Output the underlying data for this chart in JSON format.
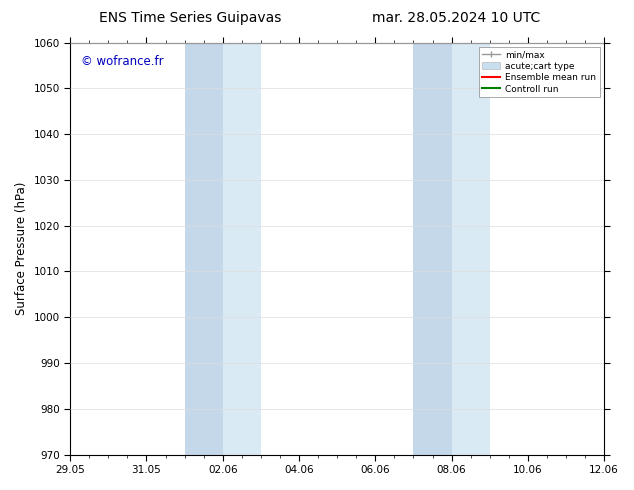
{
  "title_left": "ENS Time Series Guipavas",
  "title_right": "mar. 28.05.2024 10 UTC",
  "ylabel": "Surface Pressure (hPa)",
  "ylim": [
    970,
    1060
  ],
  "yticks": [
    970,
    980,
    990,
    1000,
    1010,
    1020,
    1030,
    1040,
    1050,
    1060
  ],
  "xtick_labels": [
    "29.05",
    "31.05",
    "02.06",
    "04.06",
    "06.06",
    "08.06",
    "10.06",
    "12.06"
  ],
  "xtick_positions_days": [
    0,
    2,
    4,
    6,
    8,
    10,
    12,
    14
  ],
  "xlim": [
    0,
    14
  ],
  "shade_bands": [
    {
      "x_start_days": 3.0,
      "x_end_days": 3.5
    },
    {
      "x_start_days": 3.5,
      "x_end_days": 5.0
    },
    {
      "x_start_days": 9.0,
      "x_end_days": 9.5
    },
    {
      "x_start_days": 9.5,
      "x_end_days": 11.0
    }
  ],
  "shade_color_dark": "#c5d8ea",
  "shade_color_light": "#daeaf5",
  "watermark": "© wofrance.fr",
  "watermark_color": "#0000bb",
  "legend_items": [
    {
      "label": "min/max",
      "color": "#999999",
      "lw": 1.0,
      "style": "minmax"
    },
    {
      "label": "acute;cart type",
      "color": "#c8dff0",
      "lw": 6,
      "style": "thick"
    },
    {
      "label": "Ensemble mean run",
      "color": "#ff0000",
      "lw": 1.5,
      "style": "solid"
    },
    {
      "label": "Controll run",
      "color": "#008000",
      "lw": 1.5,
      "style": "solid"
    }
  ],
  "bg_color": "#ffffff",
  "grid_color": "#dddddd",
  "title_fontsize": 10,
  "tick_fontsize": 7.5,
  "ylabel_fontsize": 8.5,
  "watermark_fontsize": 8.5
}
